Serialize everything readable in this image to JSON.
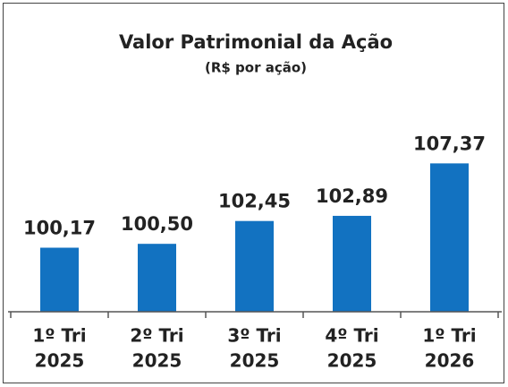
{
  "chart_data": {
    "type": "bar",
    "title": "Valor Patrimonial da Ação",
    "subtitle": "(R$ por ação)",
    "categories": [
      [
        "1º Tri",
        "2025"
      ],
      [
        "2º Tri",
        "2025"
      ],
      [
        "3º Tri",
        "2025"
      ],
      [
        "4º Tri",
        "2025"
      ],
      [
        "1º Tri",
        "2026"
      ]
    ],
    "values": [
      100.17,
      100.5,
      102.45,
      102.89,
      107.37
    ],
    "value_labels": [
      "100,17",
      "100,50",
      "102,45",
      "102,89",
      "107,37"
    ],
    "color": "#1272c1",
    "ylim": [
      94.7,
      110
    ],
    "grid": false
  }
}
